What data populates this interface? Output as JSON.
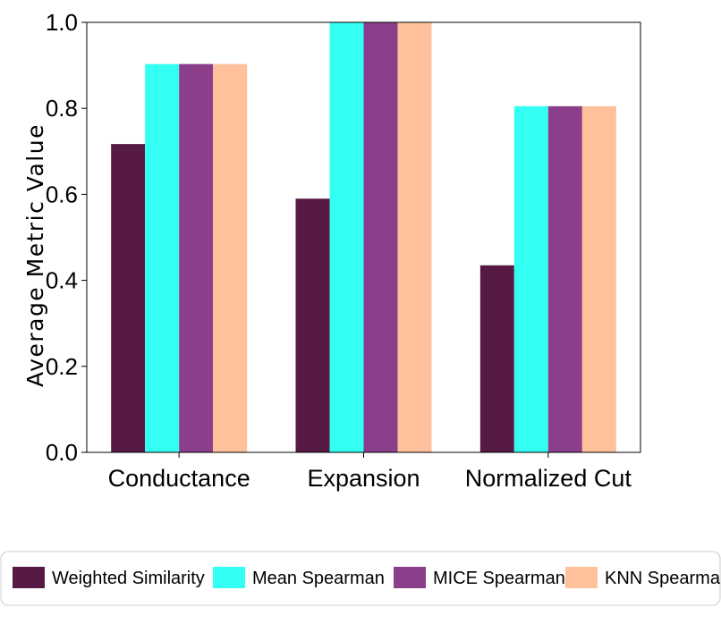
{
  "chart_data": {
    "type": "bar",
    "categories": [
      "Conductance",
      "Expansion",
      "Normalized Cut"
    ],
    "series": [
      {
        "name": "Weighted Similarity",
        "color": "#561a45",
        "values": [
          0.717,
          0.59,
          0.435
        ]
      },
      {
        "name": "Mean Spearman",
        "color": "#33fff2",
        "values": [
          0.903,
          1.0,
          0.805
        ]
      },
      {
        "name": "MICE Spearman",
        "color": "#8b3e89",
        "values": [
          0.903,
          1.0,
          0.805
        ]
      },
      {
        "name": "KNN Spearman",
        "color": "#ffc09c",
        "values": [
          0.903,
          1.0,
          0.805
        ]
      }
    ],
    "title": "",
    "xlabel": "",
    "ylabel": "Average Metric Value",
    "ylim": [
      0,
      1.0
    ],
    "yticks": [
      "0.0",
      "0.2",
      "0.4",
      "0.6",
      "0.8",
      "1.0"
    ],
    "grid": false,
    "legend_position": "bottom"
  }
}
